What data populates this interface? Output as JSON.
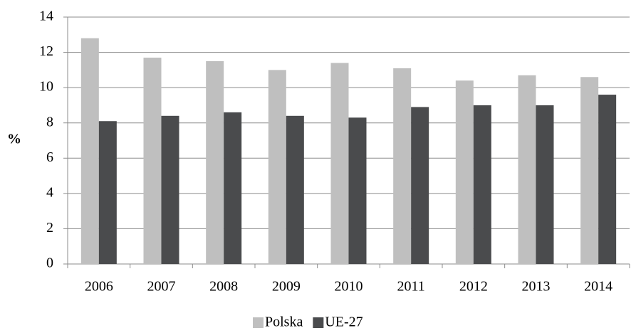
{
  "chart_data": {
    "type": "bar",
    "ylabel": "%",
    "categories": [
      "2006",
      "2007",
      "2008",
      "2009",
      "2010",
      "2011",
      "2012",
      "2013",
      "2014"
    ],
    "series": [
      {
        "name": "Polska",
        "color": "#bfbfbf",
        "values": [
          12.8,
          11.7,
          11.5,
          11.0,
          11.4,
          11.1,
          10.4,
          10.7,
          10.6
        ]
      },
      {
        "name": "UE-27",
        "color": "#4a4b4d",
        "values": [
          8.1,
          8.4,
          8.6,
          8.4,
          8.3,
          8.9,
          9.0,
          9.0,
          9.6
        ]
      }
    ],
    "ylim": [
      0,
      14
    ],
    "yticks": [
      0,
      2,
      4,
      6,
      8,
      10,
      12,
      14
    ],
    "grid": true,
    "legend": "bottom"
  }
}
